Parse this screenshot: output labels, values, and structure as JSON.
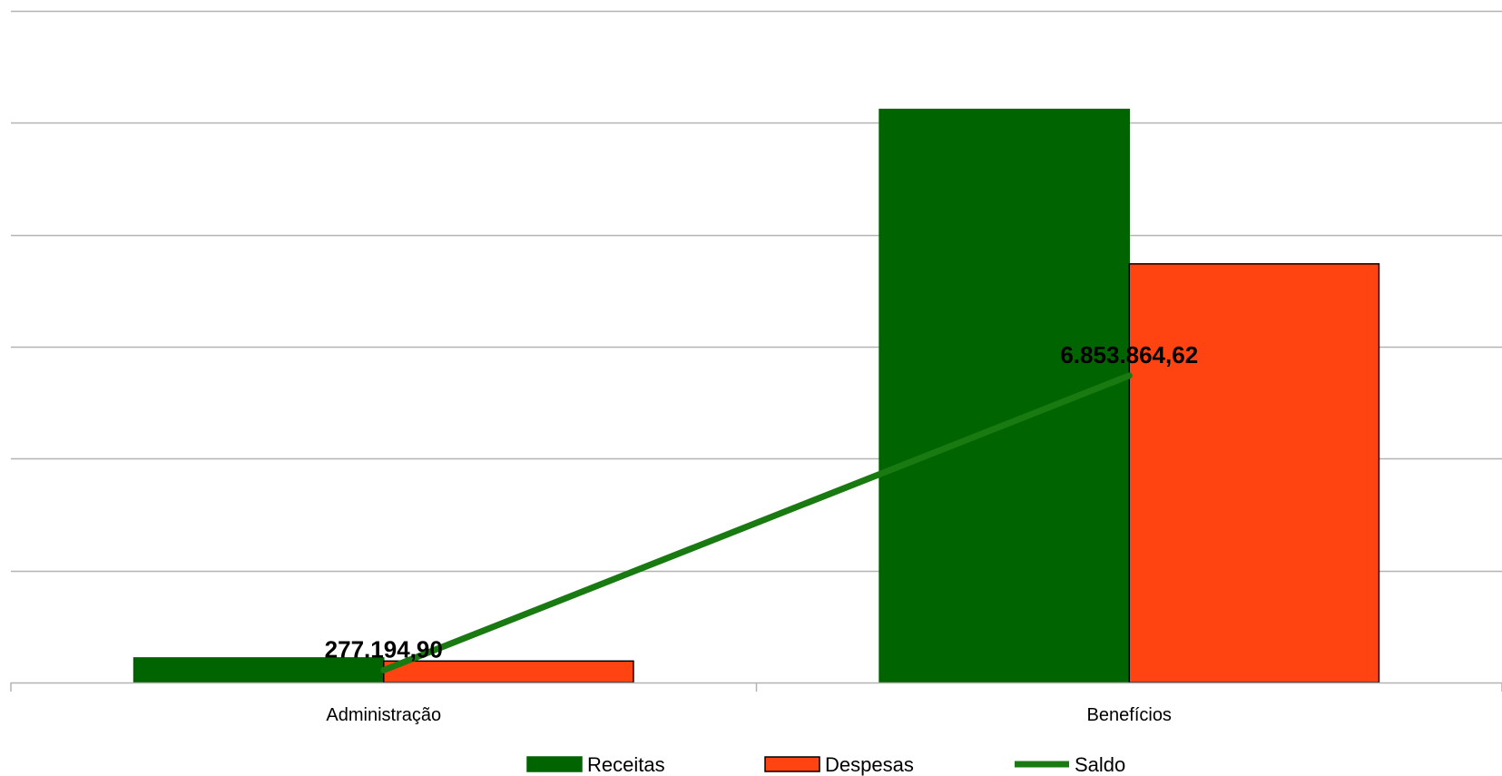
{
  "colors": {
    "receitas": "#006400",
    "despesas": "#ff4411",
    "saldo": "#1a7a12",
    "grid": "#b3b3b3"
  },
  "chart_data": {
    "type": "bar",
    "categories": [
      "Administração",
      "Benefícios"
    ],
    "series": [
      {
        "name": "Receitas",
        "type": "bar",
        "values": [
          550000,
          12800000
        ]
      },
      {
        "name": "Despesas",
        "type": "bar",
        "values": [
          480000,
          9350000
        ]
      },
      {
        "name": "Saldo",
        "type": "line",
        "values": [
          277194.9,
          6853864.62
        ]
      }
    ],
    "data_labels": [
      "277.194,90",
      "6.853.864,62"
    ],
    "ylim": [
      0,
      15000000
    ],
    "y_gridlines": [
      0,
      2500000,
      5000000,
      7500000,
      10000000,
      12500000,
      15000000
    ],
    "grid": true,
    "legend_position": "bottom-center",
    "title": "",
    "xlabel": "",
    "ylabel": ""
  }
}
